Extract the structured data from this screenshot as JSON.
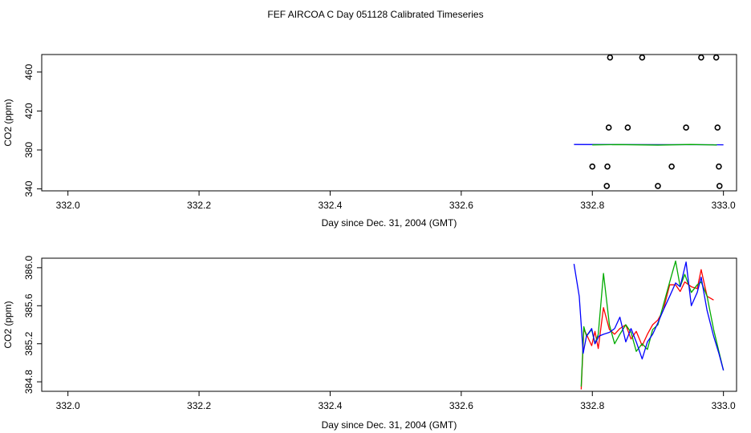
{
  "title": "FEF AIRCOA C  Day 051128  Calibrated Timeseries",
  "chart_data": [
    {
      "type": "scatter",
      "xlabel": "Day since Dec. 31, 2004 (GMT)",
      "ylabel": "CO2 (ppm)",
      "xlim": [
        331.96,
        333.02
      ],
      "ylim": [
        338.0,
        478.0
      ],
      "xticks": [
        332.0,
        332.2,
        332.4,
        332.6,
        332.8,
        333.0
      ],
      "xtick_labels": [
        "332.0",
        "332.2",
        "332.4",
        "332.6",
        "332.8",
        "333.0"
      ],
      "yticks": [
        340,
        380,
        420,
        460
      ],
      "ytick_labels": [
        "340",
        "380",
        "420",
        "460"
      ],
      "points": [
        {
          "x": 332.827,
          "y": 475
        },
        {
          "x": 332.876,
          "y": 475
        },
        {
          "x": 332.966,
          "y": 475
        },
        {
          "x": 332.989,
          "y": 475
        },
        {
          "x": 332.825,
          "y": 403
        },
        {
          "x": 332.854,
          "y": 403
        },
        {
          "x": 332.943,
          "y": 403
        },
        {
          "x": 332.991,
          "y": 403
        },
        {
          "x": 332.8,
          "y": 363
        },
        {
          "x": 332.823,
          "y": 363
        },
        {
          "x": 332.921,
          "y": 363
        },
        {
          "x": 332.993,
          "y": 363
        },
        {
          "x": 332.822,
          "y": 343
        },
        {
          "x": 332.9,
          "y": 343
        },
        {
          "x": 332.994,
          "y": 343
        }
      ],
      "series": [
        {
          "color": "#0000ff",
          "x": [
            332.772,
            333.0
          ],
          "values": [
            385.6,
            385.3
          ]
        },
        {
          "color": "#00aa00",
          "x": [
            332.8,
            332.84,
            332.9,
            332.95,
            332.99
          ],
          "values": [
            385.2,
            385.5,
            385.0,
            385.6,
            385.1
          ]
        }
      ]
    },
    {
      "type": "line",
      "xlabel": "Day since Dec. 31, 2004 (GMT)",
      "ylabel": "CO2 (ppm)",
      "xlim": [
        331.96,
        333.02
      ],
      "ylim": [
        384.7,
        386.1
      ],
      "xticks": [
        332.0,
        332.2,
        332.4,
        332.6,
        332.8,
        333.0
      ],
      "xtick_labels": [
        "332.0",
        "332.2",
        "332.4",
        "332.6",
        "332.8",
        "333.0"
      ],
      "yticks": [
        384.8,
        385.2,
        385.6,
        386.0
      ],
      "ytick_labels": [
        "384.8",
        "385.2",
        "385.6",
        "386.0"
      ],
      "series": [
        {
          "color": "#ff0000",
          "x": [
            332.783,
            332.787,
            332.791,
            332.799,
            332.804,
            332.809,
            332.817,
            332.826,
            332.834,
            332.842,
            332.851,
            332.859,
            332.867,
            332.876,
            332.884,
            332.892,
            332.9,
            332.908,
            332.918,
            332.927,
            332.934,
            332.941,
            332.951,
            332.96,
            332.966,
            332.975,
            332.985
          ],
          "values": [
            384.72,
            385.35,
            385.3,
            385.18,
            385.33,
            385.15,
            385.58,
            385.35,
            385.3,
            385.36,
            385.4,
            385.25,
            385.33,
            385.18,
            385.3,
            385.4,
            385.45,
            385.55,
            385.82,
            385.82,
            385.75,
            385.85,
            385.8,
            385.78,
            385.98,
            385.7,
            385.66
          ]
        },
        {
          "color": "#00aa00",
          "x": [
            332.783,
            332.787,
            332.791,
            332.799,
            332.804,
            332.809,
            332.817,
            332.826,
            332.834,
            332.842,
            332.851,
            332.859,
            332.867,
            332.876,
            332.884,
            332.892,
            332.9,
            332.908,
            332.918,
            332.927,
            332.934,
            332.941,
            332.951,
            332.96,
            332.966,
            332.975,
            332.985,
            332.993,
            333.0
          ],
          "values": [
            384.75,
            385.38,
            385.28,
            385.35,
            385.2,
            385.3,
            385.94,
            385.4,
            385.2,
            385.3,
            385.4,
            385.32,
            385.12,
            385.2,
            385.14,
            385.35,
            385.4,
            385.6,
            385.85,
            386.07,
            385.8,
            385.93,
            385.74,
            385.82,
            385.85,
            385.7,
            385.35,
            385.12,
            384.92
          ]
        },
        {
          "color": "#0000ff",
          "x": [
            332.772,
            332.78,
            332.786,
            332.791,
            332.799,
            332.804,
            332.81,
            332.817,
            332.826,
            332.834,
            332.842,
            332.851,
            332.859,
            332.867,
            332.876,
            332.884,
            332.892,
            332.9,
            332.908,
            332.918,
            332.927,
            332.934,
            332.943,
            332.951,
            332.96,
            332.966,
            332.975,
            332.985,
            332.993,
            333.0
          ],
          "values": [
            386.04,
            385.7,
            385.1,
            385.28,
            385.36,
            385.2,
            385.28,
            385.3,
            385.32,
            385.36,
            385.48,
            385.22,
            385.36,
            385.22,
            385.04,
            385.22,
            385.3,
            385.42,
            385.55,
            385.7,
            385.84,
            385.8,
            386.06,
            385.6,
            385.74,
            385.9,
            385.55,
            385.28,
            385.1,
            384.92
          ]
        }
      ]
    }
  ]
}
